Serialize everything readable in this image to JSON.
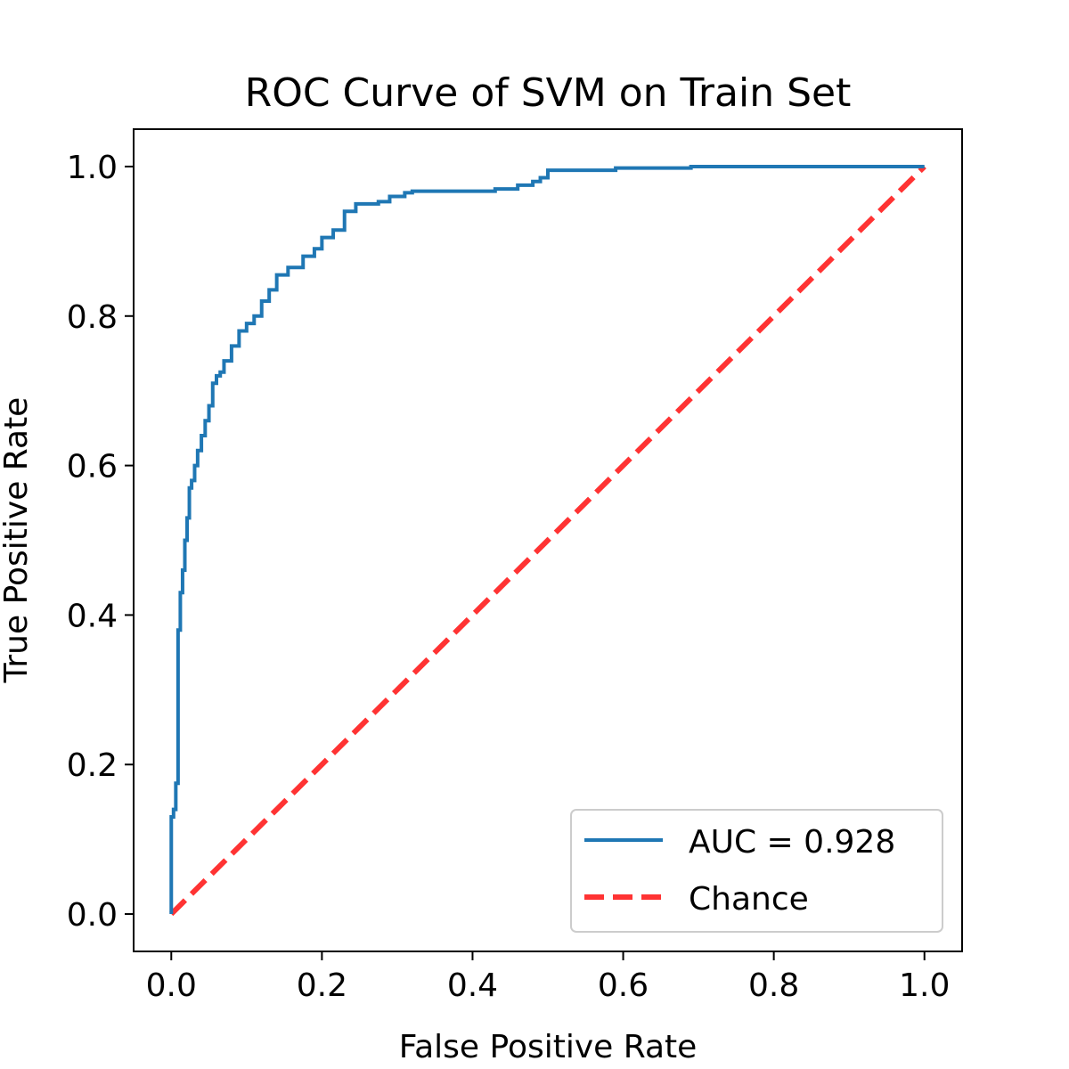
{
  "chart_data": {
    "type": "line",
    "title": "ROC Curve of SVM on Train Set",
    "xlabel": "False Positive Rate",
    "ylabel": "True Positive Rate",
    "xlim": [
      -0.05,
      1.05
    ],
    "ylim": [
      -0.05,
      1.05
    ],
    "xticks": [
      0.0,
      0.2,
      0.4,
      0.6,
      0.8,
      1.0
    ],
    "yticks": [
      0.0,
      0.2,
      0.4,
      0.6,
      0.8,
      1.0
    ],
    "xtick_labels": [
      "0.0",
      "0.2",
      "0.4",
      "0.6",
      "0.8",
      "1.0"
    ],
    "ytick_labels": [
      "0.0",
      "0.2",
      "0.4",
      "0.6",
      "0.8",
      "1.0"
    ],
    "grid": false,
    "legend_position": "lower-right",
    "series": [
      {
        "name": "AUC = 0.928",
        "color": "#1f77b4",
        "style": "solid",
        "x": [
          0.0,
          0.0,
          0.003,
          0.003,
          0.006,
          0.006,
          0.009,
          0.009,
          0.012,
          0.012,
          0.015,
          0.015,
          0.018,
          0.018,
          0.021,
          0.021,
          0.024,
          0.024,
          0.027,
          0.027,
          0.031,
          0.031,
          0.035,
          0.035,
          0.04,
          0.04,
          0.045,
          0.045,
          0.05,
          0.05,
          0.055,
          0.055,
          0.06,
          0.06,
          0.065,
          0.065,
          0.07,
          0.07,
          0.08,
          0.08,
          0.09,
          0.09,
          0.1,
          0.1,
          0.11,
          0.11,
          0.12,
          0.12,
          0.13,
          0.13,
          0.14,
          0.14,
          0.155,
          0.155,
          0.175,
          0.175,
          0.19,
          0.19,
          0.2,
          0.2,
          0.215,
          0.215,
          0.23,
          0.23,
          0.245,
          0.245,
          0.275,
          0.275,
          0.29,
          0.29,
          0.31,
          0.31,
          0.32,
          0.32,
          0.43,
          0.43,
          0.46,
          0.46,
          0.48,
          0.48,
          0.49,
          0.49,
          0.5,
          0.5,
          0.59,
          0.59,
          0.69,
          0.69,
          1.0
        ],
        "y": [
          0.0,
          0.13,
          0.13,
          0.14,
          0.14,
          0.175,
          0.175,
          0.38,
          0.38,
          0.43,
          0.43,
          0.46,
          0.46,
          0.5,
          0.5,
          0.53,
          0.53,
          0.57,
          0.57,
          0.58,
          0.58,
          0.6,
          0.6,
          0.62,
          0.62,
          0.64,
          0.64,
          0.66,
          0.66,
          0.68,
          0.68,
          0.71,
          0.71,
          0.72,
          0.72,
          0.725,
          0.725,
          0.74,
          0.74,
          0.76,
          0.76,
          0.78,
          0.78,
          0.79,
          0.79,
          0.8,
          0.8,
          0.82,
          0.82,
          0.835,
          0.835,
          0.855,
          0.855,
          0.865,
          0.865,
          0.88,
          0.88,
          0.89,
          0.89,
          0.905,
          0.905,
          0.915,
          0.915,
          0.94,
          0.94,
          0.95,
          0.95,
          0.953,
          0.953,
          0.96,
          0.96,
          0.965,
          0.965,
          0.967,
          0.967,
          0.97,
          0.97,
          0.975,
          0.975,
          0.98,
          0.98,
          0.985,
          0.985,
          0.995,
          0.995,
          0.998,
          0.998,
          1.0,
          1.0
        ]
      },
      {
        "name": "Chance",
        "color": "#ff3333",
        "style": "dashed",
        "x": [
          0.0,
          1.0
        ],
        "y": [
          0.0,
          1.0
        ]
      }
    ]
  }
}
